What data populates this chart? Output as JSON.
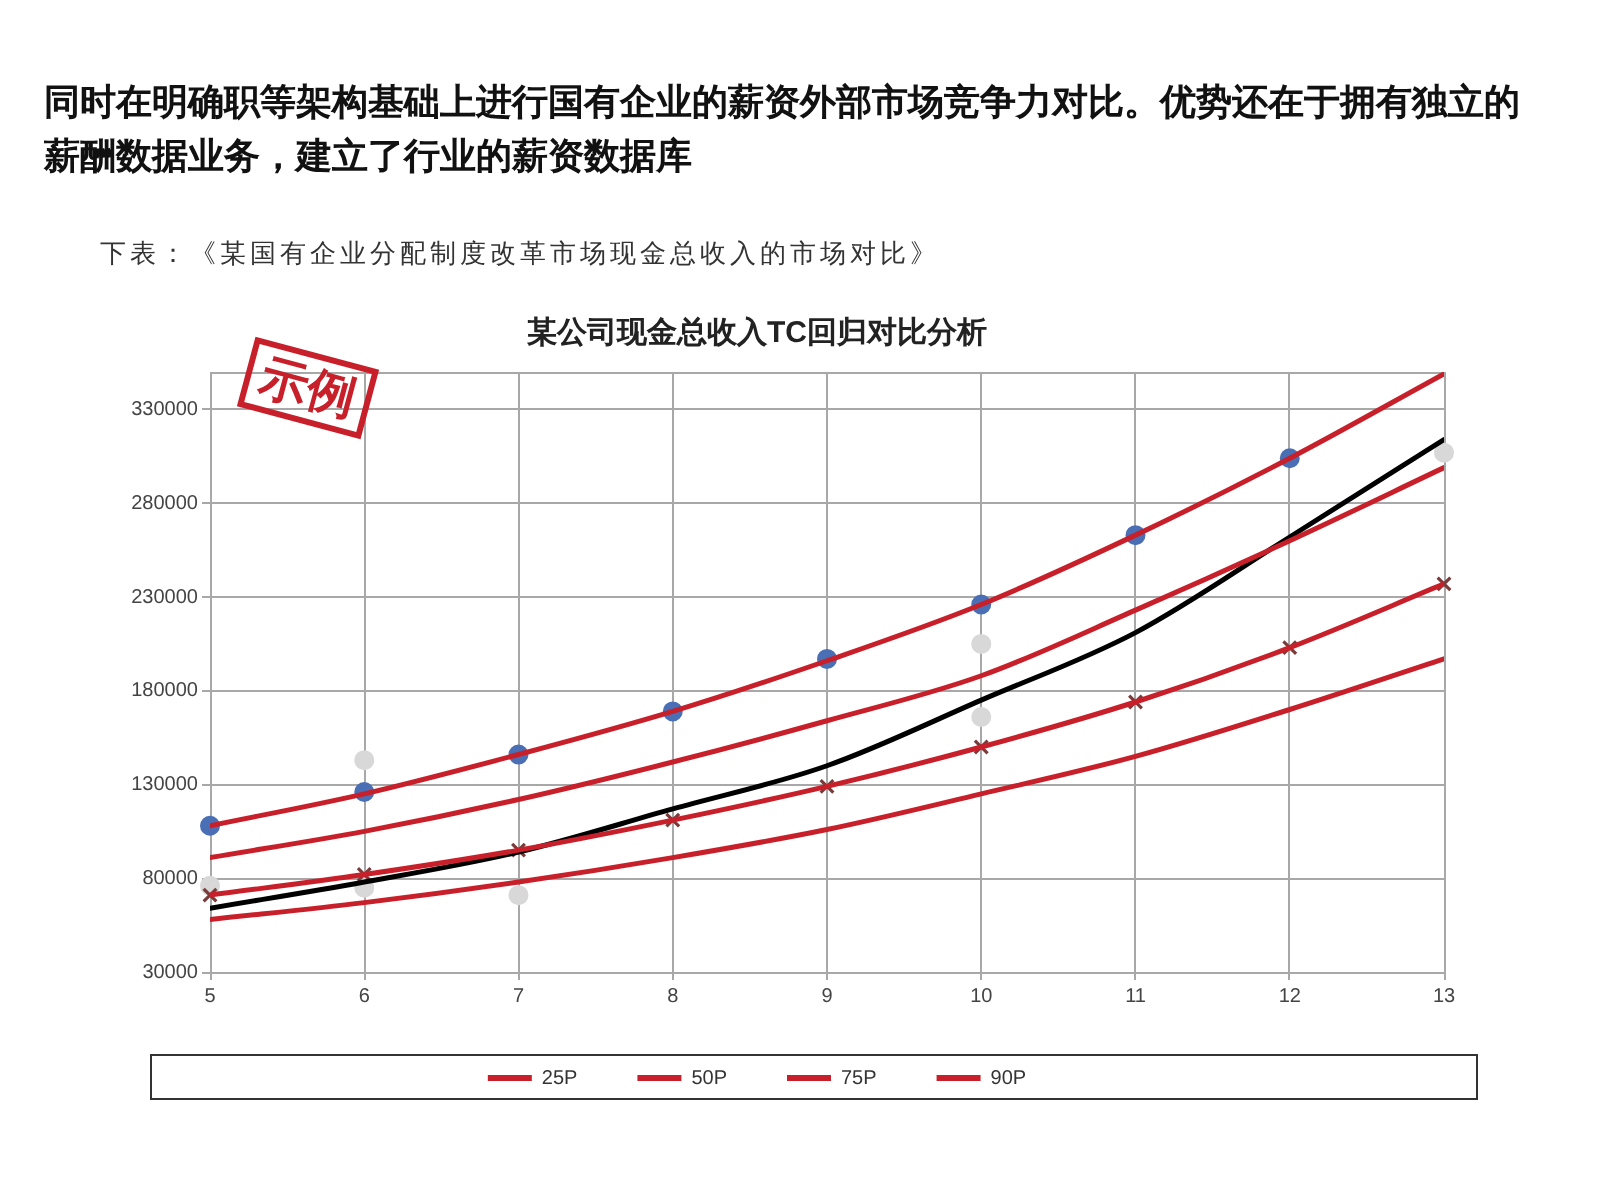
{
  "chart_data": {
    "type": "line",
    "title": "某公司现金总收入TC回归对比分析",
    "annotations": [
      "同时在明确职等架构基础上进行国有企业的薪资外部市场竞争力对比。优势还在于拥有独立的薪酬数据业务，建立了行业的薪资数据库",
      "下表：《某国有企业分配制度改革市场现金总收入的市场对比》",
      "示例"
    ],
    "x": [
      5,
      6,
      7,
      8,
      9,
      10,
      11,
      12,
      13
    ],
    "xlim": [
      5,
      13
    ],
    "xticks": [
      5,
      6,
      7,
      8,
      9,
      10,
      11,
      12,
      13
    ],
    "ylim": [
      30000,
      350000
    ],
    "yticks": [
      30000,
      80000,
      130000,
      180000,
      230000,
      280000,
      330000
    ],
    "grid": true,
    "legend": "bottom",
    "series": [
      {
        "type": "line",
        "name": "25P",
        "color": "#c8202a",
        "values": [
          58000,
          67000,
          78000,
          91000,
          106000,
          125000,
          145000,
          170000,
          197000
        ]
      },
      {
        "type": "line",
        "name": "50P",
        "color": "#c8202a",
        "values": [
          71000,
          82000,
          95000,
          111000,
          129000,
          150000,
          174000,
          203000,
          237000
        ]
      },
      {
        "type": "line",
        "name": "75P",
        "color": "#c8202a",
        "values": [
          91000,
          105000,
          122000,
          142000,
          164000,
          188000,
          223000,
          260000,
          299000
        ]
      },
      {
        "type": "line",
        "name": "90P",
        "color": "#c8202a",
        "values": [
          108000,
          125000,
          146000,
          169000,
          196000,
          226000,
          263000,
          304000,
          349000
        ]
      },
      {
        "type": "line",
        "color": "#000000",
        "values": [
          64000,
          78000,
          94000,
          117000,
          140000,
          175000,
          211000,
          262000,
          314000
        ]
      },
      {
        "type": "scatter",
        "color": "#4a6fb5",
        "marker": "circle",
        "x": [
          5,
          6,
          7,
          8,
          9,
          10,
          11,
          12
        ],
        "values": [
          108000,
          126000,
          146000,
          169000,
          197000,
          226000,
          263000,
          304000
        ]
      },
      {
        "type": "scatter",
        "color": "#7a3b3b",
        "marker": "cross",
        "values": [
          71000,
          82000,
          95000,
          111000,
          129000,
          150000,
          174000,
          203000,
          237000
        ]
      },
      {
        "type": "scatter",
        "color": "#d8d8d8",
        "marker": "circle",
        "x": [
          5,
          6,
          6,
          7,
          10,
          10,
          13
        ],
        "values": [
          76000,
          143000,
          75000,
          71000,
          205000,
          166000,
          307000
        ]
      }
    ]
  }
}
